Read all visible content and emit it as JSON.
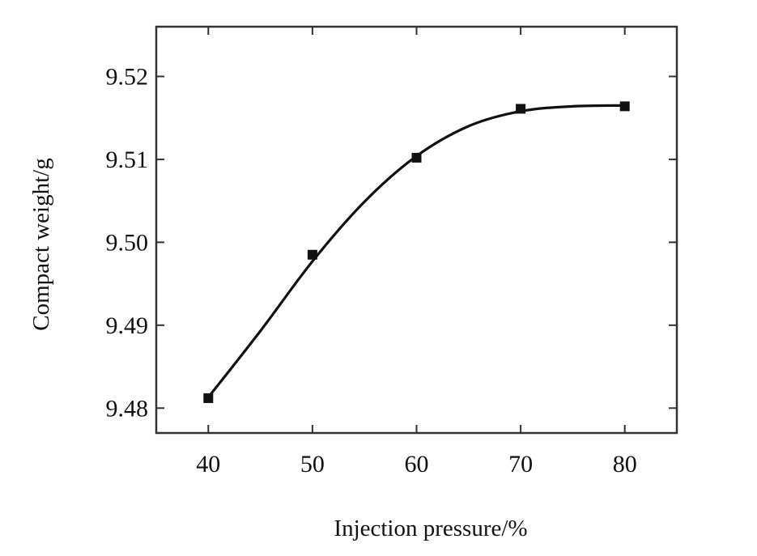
{
  "chart_data": {
    "type": "scatter",
    "title": "",
    "xlabel": "Injection pressure/%",
    "ylabel": "Compact weight/g",
    "xlim": [
      35,
      85
    ],
    "ylim": [
      9.477,
      9.526
    ],
    "x_ticks": [
      40,
      50,
      60,
      70,
      80
    ],
    "x_tick_labels": [
      "40",
      "50",
      "60",
      "70",
      "80"
    ],
    "y_ticks": [
      9.48,
      9.49,
      9.5,
      9.51,
      9.52
    ],
    "y_tick_labels": [
      "9.48",
      "9.49",
      "9.50",
      "9.51",
      "9.52"
    ],
    "grid": false,
    "legend": "none",
    "series": [
      {
        "marker": "square",
        "x": [
          40,
          50,
          60,
          70,
          80
        ],
        "y": [
          9.4812,
          9.4985,
          9.5102,
          9.5161,
          9.5164
        ]
      }
    ],
    "fit_curve": {
      "type": "smooth",
      "x": [
        40,
        45,
        50,
        55,
        60,
        65,
        70,
        75,
        80
      ],
      "y": [
        9.4813,
        9.4893,
        9.4977,
        9.5049,
        9.5104,
        9.514,
        9.5158,
        9.5164,
        9.5165
      ]
    },
    "colors": {
      "marker": "#111111",
      "curve": "#111111",
      "axes": "#333333"
    }
  }
}
